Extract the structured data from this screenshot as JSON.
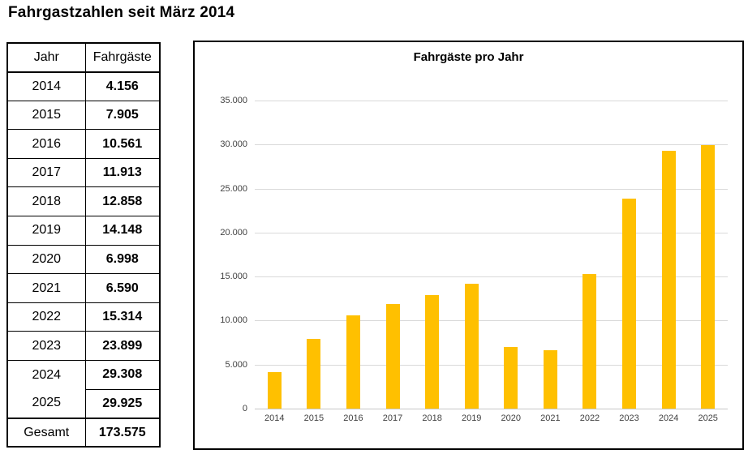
{
  "page": {
    "title": "Fahrgastzahlen seit März 2014"
  },
  "table": {
    "headers": [
      "Jahr",
      "Fahrgäste"
    ],
    "rows": [
      [
        "2014",
        "4.156"
      ],
      [
        "2015",
        "7.905"
      ],
      [
        "2016",
        "10.561"
      ],
      [
        "2017",
        "11.913"
      ],
      [
        "2018",
        "12.858"
      ],
      [
        "2019",
        "14.148"
      ],
      [
        "2020",
        "6.998"
      ],
      [
        "2021",
        "6.590"
      ],
      [
        "2022",
        "15.314"
      ],
      [
        "2023",
        "23.899"
      ],
      [
        "2024",
        "29.308"
      ],
      [
        "2025",
        "29.925"
      ]
    ],
    "total": [
      "Gesamt",
      "173.575"
    ]
  },
  "chart_data": {
    "type": "bar",
    "title": "Fahrgäste pro Jahr",
    "categories": [
      "2014",
      "2015",
      "2016",
      "2017",
      "2018",
      "2019",
      "2020",
      "2021",
      "2022",
      "2023",
      "2024",
      "2025"
    ],
    "values": [
      4156,
      7905,
      10561,
      11913,
      12858,
      14148,
      6998,
      6590,
      15314,
      23899,
      29308,
      29925
    ],
    "xlabel": "",
    "ylabel": "",
    "ylim": [
      0,
      35000
    ],
    "y_ticks": [
      {
        "value": 35000,
        "label": "35.000"
      },
      {
        "value": 30000,
        "label": "30.000"
      },
      {
        "value": 25000,
        "label": "25.000"
      },
      {
        "value": 20000,
        "label": "20.000"
      },
      {
        "value": 15000,
        "label": "15.000"
      },
      {
        "value": 10000,
        "label": "10.000"
      },
      {
        "value": 5000,
        "label": "5.000"
      },
      {
        "value": 0,
        "label": "0"
      }
    ],
    "grid": true,
    "legend": "none",
    "bar_color": "#FFC000",
    "gridline_color": "#d9d9d9",
    "axis_line_color": "#c6c6c6"
  }
}
